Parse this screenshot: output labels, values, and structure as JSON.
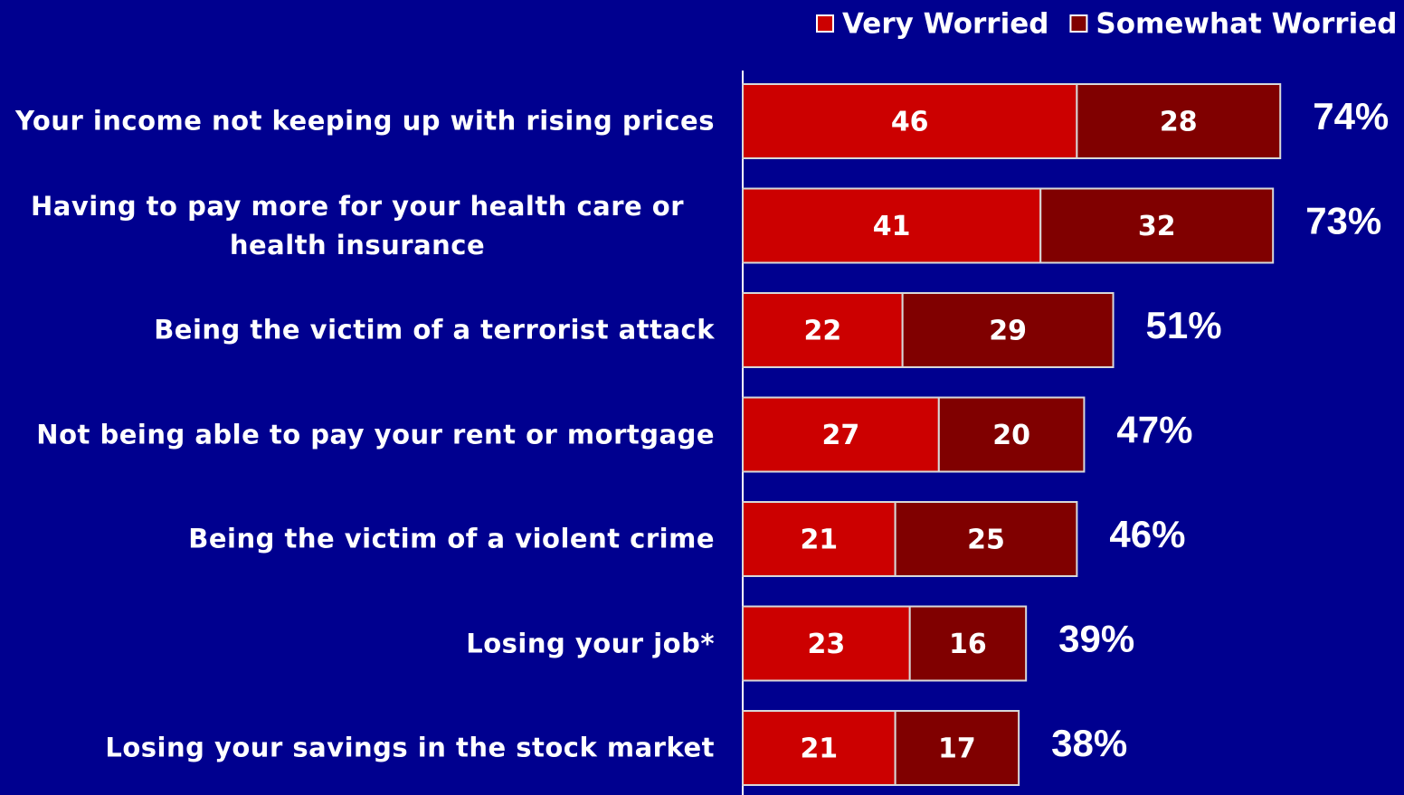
{
  "chart_data": {
    "type": "stacked-bar-horizontal",
    "categories": [
      "Your income not keeping up with rising prices",
      "Having to pay more for your health care or health insurance",
      "Being the victim of a terrorist attack",
      "Not being able to pay your rent or mortgage",
      "Being the victim of a violent crime",
      "Losing your job*",
      "Losing your savings in the stock market"
    ],
    "series": [
      {
        "name": "Very Worried",
        "color": "#cc0000",
        "values": [
          46,
          41,
          22,
          27,
          21,
          23,
          21
        ]
      },
      {
        "name": "Somewhat Worried",
        "color": "#800000",
        "values": [
          28,
          32,
          29,
          20,
          25,
          16,
          17
        ]
      }
    ],
    "total_labels": [
      "74%",
      "73%",
      "51%",
      "47%",
      "46%",
      "39%",
      "38%"
    ]
  }
}
